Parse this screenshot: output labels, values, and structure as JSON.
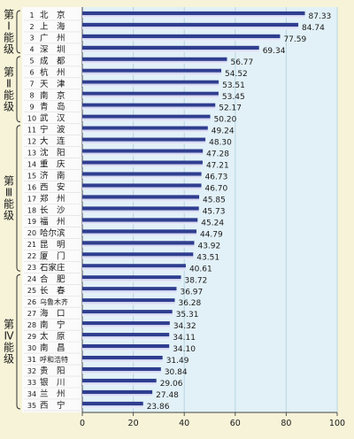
{
  "chart_data": {
    "type": "bar",
    "orientation": "horizontal",
    "title": "",
    "xlabel": "",
    "ylabel": "",
    "xlim": [
      0,
      100
    ],
    "x_ticks": [
      "0",
      "20",
      "40",
      "60",
      "80",
      "100"
    ],
    "grid": true,
    "categories": [
      {
        "rank": "1",
        "city": "北　京"
      },
      {
        "rank": "2",
        "city": "上　海"
      },
      {
        "rank": "3",
        "city": "广　州"
      },
      {
        "rank": "4",
        "city": "深　圳"
      },
      {
        "rank": "5",
        "city": "成　都"
      },
      {
        "rank": "6",
        "city": "杭　州"
      },
      {
        "rank": "7",
        "city": "天　津"
      },
      {
        "rank": "8",
        "city": "南　京"
      },
      {
        "rank": "9",
        "city": "青　岛"
      },
      {
        "rank": "10",
        "city": "武　汉"
      },
      {
        "rank": "11",
        "city": "宁　波"
      },
      {
        "rank": "12",
        "city": "大　连"
      },
      {
        "rank": "13",
        "city": "沈　阳"
      },
      {
        "rank": "14",
        "city": "重　庆"
      },
      {
        "rank": "15",
        "city": "济　南"
      },
      {
        "rank": "16",
        "city": "西　安"
      },
      {
        "rank": "17",
        "city": "郑　州"
      },
      {
        "rank": "18",
        "city": "长　沙"
      },
      {
        "rank": "19",
        "city": "福　州"
      },
      {
        "rank": "20",
        "city": "哈尔滨"
      },
      {
        "rank": "21",
        "city": "昆　明"
      },
      {
        "rank": "22",
        "city": "厦　门"
      },
      {
        "rank": "23",
        "city": "石家庄"
      },
      {
        "rank": "24",
        "city": "合　肥"
      },
      {
        "rank": "25",
        "city": "长　春"
      },
      {
        "rank": "26",
        "city": "乌鲁木齐"
      },
      {
        "rank": "27",
        "city": "海　口"
      },
      {
        "rank": "28",
        "city": "南　宁"
      },
      {
        "rank": "29",
        "city": "太　原"
      },
      {
        "rank": "30",
        "city": "南　昌"
      },
      {
        "rank": "31",
        "city": "呼和浩特"
      },
      {
        "rank": "32",
        "city": "贵　阳"
      },
      {
        "rank": "33",
        "city": "银　川"
      },
      {
        "rank": "34",
        "city": "兰　州"
      },
      {
        "rank": "35",
        "city": "西　宁"
      }
    ],
    "values": [
      87.33,
      84.74,
      77.59,
      69.34,
      56.77,
      54.52,
      53.51,
      53.45,
      52.17,
      50.2,
      49.24,
      48.3,
      47.28,
      47.21,
      46.73,
      46.7,
      45.85,
      45.73,
      45.24,
      44.79,
      43.92,
      43.51,
      40.61,
      38.72,
      36.97,
      36.28,
      35.31,
      34.32,
      34.11,
      34.1,
      31.49,
      30.84,
      29.06,
      27.48,
      23.86
    ],
    "value_labels": [
      "87.33",
      "84.74",
      "77.59",
      "69.34",
      "56.77",
      "54.52",
      "53.51",
      "53.45",
      "52.17",
      "50.20",
      "49.24",
      "48.30",
      "47.28",
      "47.21",
      "46.73",
      "46.70",
      "45.85",
      "45.73",
      "45.24",
      "44.79",
      "43.92",
      "43.51",
      "40.61",
      "38.72",
      "36.97",
      "36.28",
      "35.31",
      "34.32",
      "34.11",
      "34.10",
      "31.49",
      "30.84",
      "29.06",
      "27.48",
      "23.86"
    ],
    "groups": [
      {
        "label": "第Ⅰ能级",
        "from": 0,
        "to": 3
      },
      {
        "label": "第Ⅱ能级",
        "from": 4,
        "to": 9
      },
      {
        "label": "第Ⅲ能级",
        "from": 10,
        "to": 22
      },
      {
        "label": "第Ⅳ能级",
        "from": 23,
        "to": 34
      }
    ],
    "colors": {
      "page_background": "#f6f3d8",
      "plot_background": "#e2f1f7",
      "label_panel": "#fbfbfb",
      "grid": "#b9d6e2",
      "bar_dark": "#2f3e8f",
      "bar_light": "#c8ccec",
      "text": "#1a1a1a"
    }
  }
}
